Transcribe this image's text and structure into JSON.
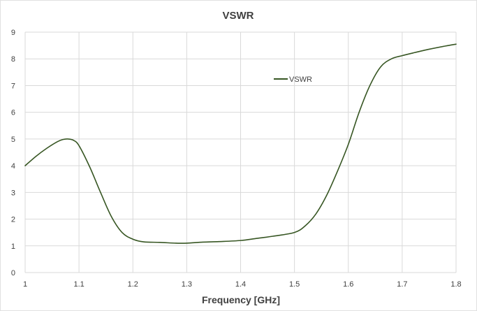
{
  "chart_data": {
    "type": "line",
    "title": "VSWR",
    "xlabel": "Frequency [GHz]",
    "ylabel": "",
    "xlim": [
      1.0,
      1.8
    ],
    "ylim": [
      0,
      9
    ],
    "xticks": [
      "1",
      "1.1",
      "1.2",
      "1.3",
      "1.4",
      "1.5",
      "1.6",
      "1.7",
      "1.8"
    ],
    "yticks": [
      "0",
      "1",
      "2",
      "3",
      "4",
      "5",
      "6",
      "7",
      "8",
      "9"
    ],
    "grid": true,
    "legend": "upper-middle-right",
    "series": [
      {
        "name": "VSWR",
        "color": "#375623",
        "x": [
          1.0,
          1.02,
          1.04,
          1.06,
          1.07,
          1.08,
          1.09,
          1.1,
          1.12,
          1.14,
          1.16,
          1.18,
          1.2,
          1.22,
          1.25,
          1.28,
          1.3,
          1.33,
          1.36,
          1.4,
          1.43,
          1.46,
          1.5,
          1.52,
          1.54,
          1.56,
          1.58,
          1.6,
          1.62,
          1.64,
          1.66,
          1.68,
          1.7,
          1.72,
          1.75,
          1.78,
          1.8
        ],
        "y": [
          4.0,
          4.35,
          4.65,
          4.9,
          4.98,
          5.0,
          4.95,
          4.75,
          3.95,
          3.0,
          2.1,
          1.5,
          1.25,
          1.15,
          1.13,
          1.1,
          1.1,
          1.14,
          1.16,
          1.2,
          1.28,
          1.36,
          1.5,
          1.75,
          2.2,
          2.9,
          3.8,
          4.8,
          6.0,
          7.0,
          7.7,
          8.0,
          8.12,
          8.22,
          8.36,
          8.48,
          8.55
        ]
      }
    ]
  }
}
